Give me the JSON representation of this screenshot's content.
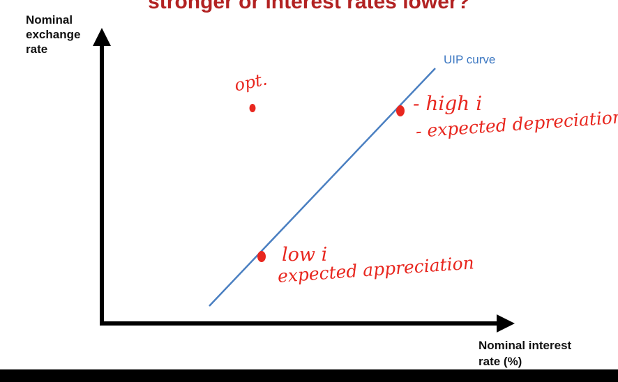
{
  "title": "stronger or interest rates lower?",
  "y_axis": {
    "line1": "Nominal",
    "line2": "exchange",
    "line3": "rate"
  },
  "x_axis": {
    "line1": "Nominal interest",
    "line2": "rate (%)"
  },
  "curve": {
    "label": "UIP curve",
    "color": "#4a7fc1"
  },
  "annotations": {
    "opt": "opt.",
    "high_line1": "- high i",
    "high_line2": "- expected depreciation",
    "low_line1": "low i",
    "low_line2": "expected appreciation"
  },
  "colors": {
    "title": "#b22222",
    "ink": "#e8271f",
    "axis": "#000000"
  }
}
